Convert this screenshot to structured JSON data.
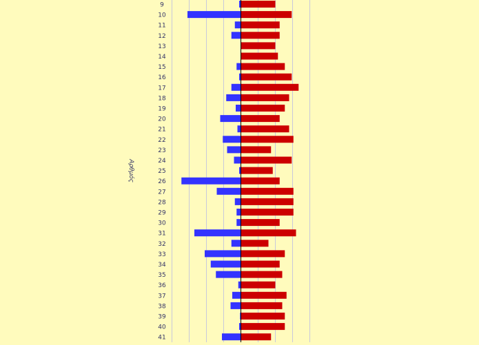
{
  "chart_data": {
    "type": "bar",
    "orientation": "horizontal",
    "diverging": true,
    "ylabel": "Αρθμός",
    "categories": [
      "9",
      "10",
      "11",
      "12",
      "13",
      "14",
      "15",
      "16",
      "17",
      "18",
      "19",
      "20",
      "21",
      "22",
      "23",
      "24",
      "25",
      "26",
      "27",
      "28",
      "29",
      "30",
      "31",
      "32",
      "33",
      "34",
      "35",
      "36",
      "37",
      "38",
      "39",
      "40",
      "41"
    ],
    "series": [
      {
        "color": "#3333ff",
        "direction": "left",
        "values": [
          0.1,
          3.1,
          0.35,
          0.55,
          0,
          0,
          0.25,
          0.1,
          0.55,
          0.85,
          0.3,
          1.2,
          0.2,
          1.05,
          0.8,
          0.4,
          0.1,
          3.45,
          1.4,
          0.35,
          0.25,
          0.25,
          2.7,
          0.55,
          2.1,
          1.75,
          1.45,
          0.15,
          0.5,
          0.6,
          0.05,
          0.1,
          1.1
        ]
      },
      {
        "color": "#cc0000",
        "direction": "right",
        "values": [
          2.0,
          2.95,
          2.25,
          2.25,
          2.0,
          2.15,
          2.55,
          2.95,
          3.35,
          2.8,
          2.55,
          2.25,
          2.8,
          3.05,
          1.75,
          2.95,
          1.85,
          2.25,
          3.05,
          3.05,
          3.05,
          2.25,
          3.2,
          1.6,
          2.55,
          2.25,
          2.4,
          2.0,
          2.65,
          2.4,
          2.55,
          2.55,
          1.75
        ]
      }
    ],
    "grid": true,
    "gridline_color": "#c8c8dc",
    "background_color": "#fffbbd",
    "axis_color": "#000000",
    "label_color": "#333366"
  }
}
